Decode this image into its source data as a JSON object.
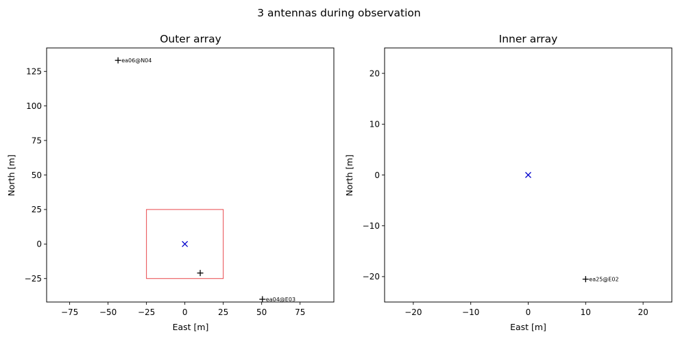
{
  "figure_title": "3 antennas during observation",
  "colors": {
    "antenna": "#000000",
    "center": "#0000cc",
    "inner_box": "#e8474a",
    "frame": "#000000"
  },
  "chart_data": [
    {
      "type": "scatter",
      "title": "Outer array",
      "xlabel": "East [m]",
      "ylabel": "North [m]",
      "xlim": [
        -90,
        97
      ],
      "ylim": [
        -42,
        142
      ],
      "xticks": [
        -75,
        -50,
        -25,
        0,
        25,
        50,
        75
      ],
      "yticks": [
        -25,
        0,
        25,
        50,
        75,
        100,
        125
      ],
      "grid": false,
      "antennas": [
        {
          "x": -43.5,
          "y": 133,
          "label": "ea06@N04"
        },
        {
          "x": 50.5,
          "y": -40,
          "label": "ea04@E03"
        },
        {
          "x": 10,
          "y": -21,
          "label": ""
        }
      ],
      "center": {
        "x": 0,
        "y": 0,
        "marker": "x"
      },
      "inner_box": {
        "x": [
          -25,
          25
        ],
        "y": [
          -25,
          25
        ]
      }
    },
    {
      "type": "scatter",
      "title": "Inner array",
      "xlabel": "East [m]",
      "ylabel": "North [m]",
      "xlim": [
        -25,
        25
      ],
      "ylim": [
        -25,
        25
      ],
      "xticks": [
        -20,
        -10,
        0,
        10,
        20
      ],
      "yticks": [
        -20,
        -10,
        0,
        10,
        20
      ],
      "grid": false,
      "antennas": [
        {
          "x": 10,
          "y": -20.5,
          "label": "ea25@E02"
        }
      ],
      "center": {
        "x": 0,
        "y": 0,
        "marker": "x"
      }
    }
  ]
}
